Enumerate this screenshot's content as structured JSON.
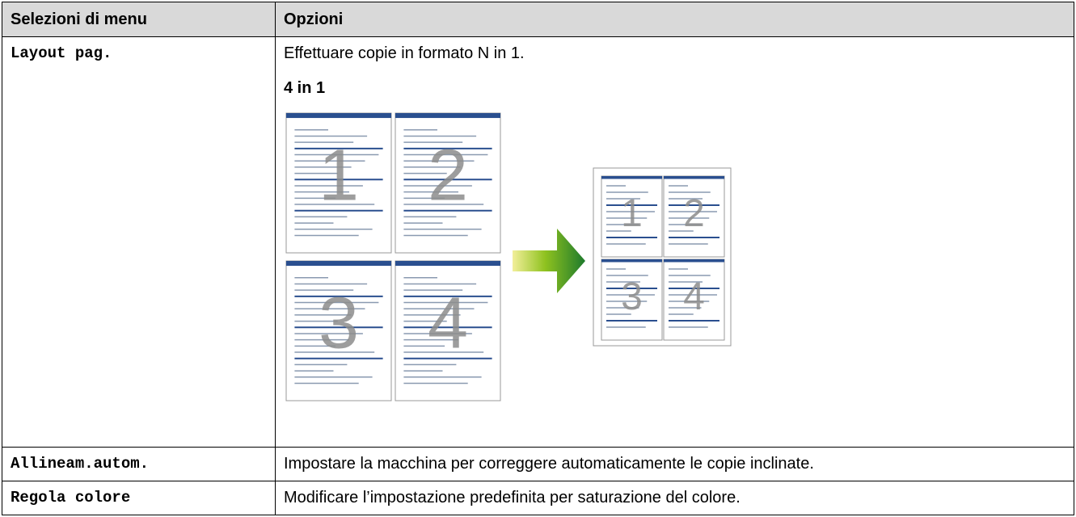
{
  "table": {
    "header": [
      "Selezioni di menu",
      "Opzioni"
    ],
    "rows": [
      {
        "menu": "Layout pag.",
        "description": "Effettuare copie in formato N in 1.",
        "subheading": "4 in 1",
        "illustration": {
          "source_pages": [
            "1",
            "2",
            "3",
            "4"
          ],
          "result_pages": [
            "1",
            "2",
            "3",
            "4"
          ]
        }
      },
      {
        "menu": "Allineam.autom.",
        "description": "Impostare la macchina per correggere automaticamente le copie inclinate."
      },
      {
        "menu": "Regola colore",
        "description": "Modificare l’impostazione predefinita per saturazione del colore."
      }
    ]
  }
}
